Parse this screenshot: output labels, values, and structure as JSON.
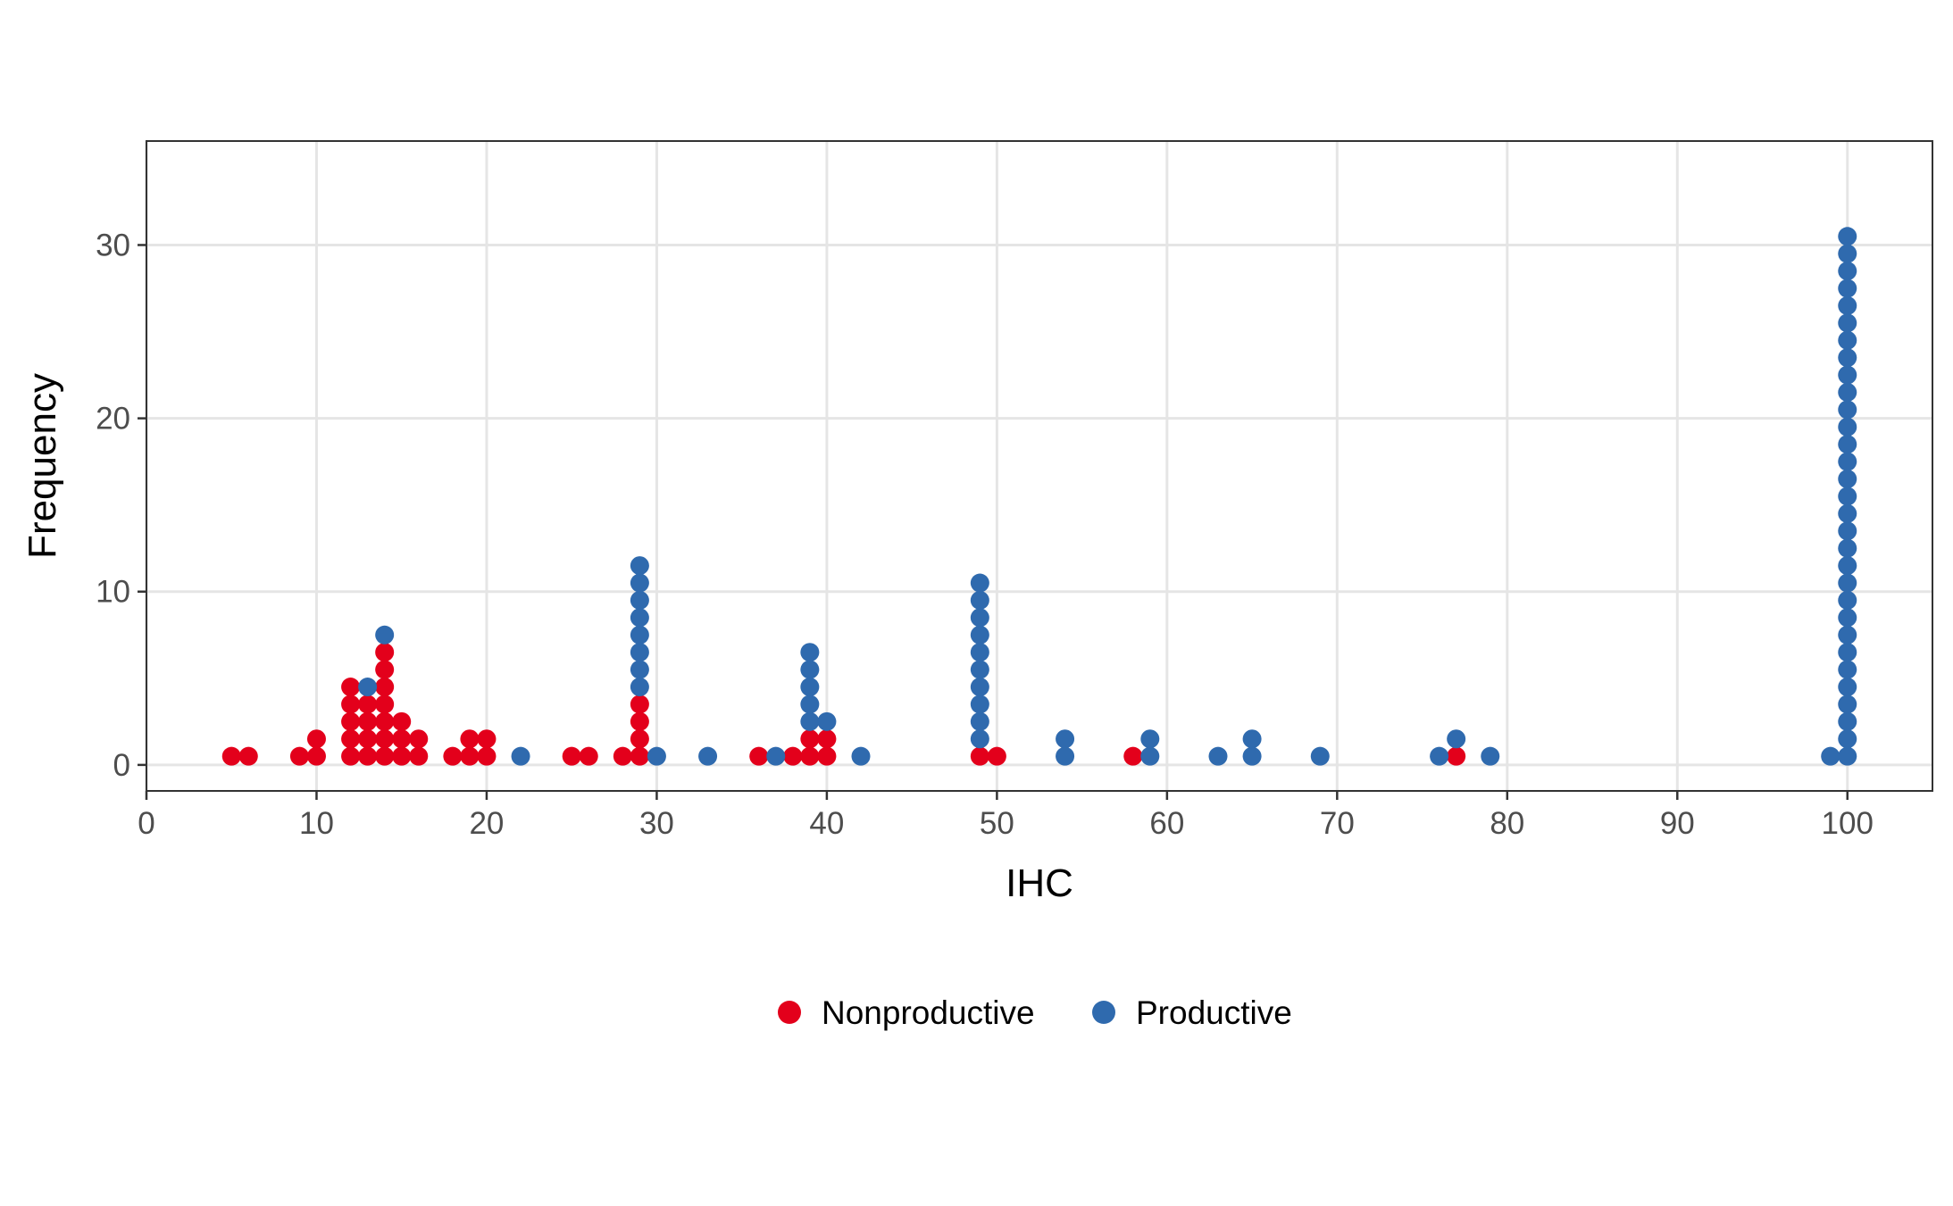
{
  "chart_data": {
    "type": "scatter",
    "subtype": "dot-plot",
    "xlabel": "IHC",
    "ylabel": "Frequency",
    "xlim": [
      0,
      105
    ],
    "ylim": [
      -1.5,
      36
    ],
    "x_ticks": [
      0,
      10,
      20,
      30,
      40,
      50,
      60,
      70,
      80,
      90,
      100
    ],
    "y_ticks": [
      0,
      10,
      20,
      30
    ],
    "grid": true,
    "legend_position": "bottom",
    "series": [
      {
        "name": "Nonproductive",
        "color": "#E3001B",
        "counts": [
          {
            "x": 5,
            "n": 1
          },
          {
            "x": 6,
            "n": 1
          },
          {
            "x": 9,
            "n": 1
          },
          {
            "x": 10,
            "n": 2
          },
          {
            "x": 12,
            "n": 5
          },
          {
            "x": 13,
            "n": 4
          },
          {
            "x": 14,
            "n": 7
          },
          {
            "x": 15,
            "n": 3
          },
          {
            "x": 16,
            "n": 2
          },
          {
            "x": 18,
            "n": 1
          },
          {
            "x": 19,
            "n": 2
          },
          {
            "x": 20,
            "n": 2
          },
          {
            "x": 25,
            "n": 1
          },
          {
            "x": 26,
            "n": 1
          },
          {
            "x": 28,
            "n": 1
          },
          {
            "x": 29,
            "n": 4
          },
          {
            "x": 36,
            "n": 1
          },
          {
            "x": 38,
            "n": 1
          },
          {
            "x": 39,
            "n": 2
          },
          {
            "x": 40,
            "n": 2
          },
          {
            "x": 49,
            "n": 1
          },
          {
            "x": 50,
            "n": 1
          },
          {
            "x": 58,
            "n": 1
          },
          {
            "x": 77,
            "n": 1
          }
        ]
      },
      {
        "name": "Productive",
        "color": "#2F6AAE",
        "counts": [
          {
            "x": 13,
            "n": 1
          },
          {
            "x": 14,
            "n": 1
          },
          {
            "x": 22,
            "n": 1
          },
          {
            "x": 29,
            "n": 8
          },
          {
            "x": 30,
            "n": 1
          },
          {
            "x": 33,
            "n": 1
          },
          {
            "x": 37,
            "n": 1
          },
          {
            "x": 39,
            "n": 5
          },
          {
            "x": 40,
            "n": 1
          },
          {
            "x": 42,
            "n": 1
          },
          {
            "x": 49,
            "n": 10
          },
          {
            "x": 54,
            "n": 2
          },
          {
            "x": 59,
            "n": 2
          },
          {
            "x": 63,
            "n": 1
          },
          {
            "x": 65,
            "n": 2
          },
          {
            "x": 69,
            "n": 1
          },
          {
            "x": 76,
            "n": 1
          },
          {
            "x": 77,
            "n": 1
          },
          {
            "x": 79,
            "n": 1
          },
          {
            "x": 99,
            "n": 1
          },
          {
            "x": 100,
            "n": 31
          }
        ]
      }
    ]
  }
}
